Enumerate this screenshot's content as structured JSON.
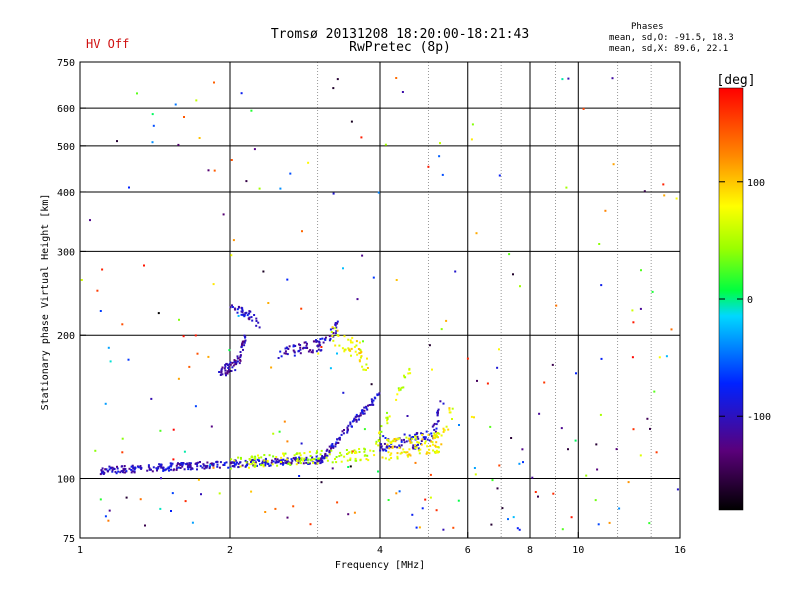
{
  "header": {
    "hv_status": "HV Off",
    "title_line1": "Tromsø 20131208 18:20:00-18:21:43",
    "title_line2": "RwPretec (8p)",
    "phases_title": "Phases",
    "phases_o": "mean, sd,O: -91.5, 18.3",
    "phases_x": "mean, sd,X:  89.6, 22.1"
  },
  "colorbar": {
    "label": "[deg]",
    "ticks": [
      {
        "value": 100,
        "label": "100"
      },
      {
        "value": 0,
        "label": "0"
      },
      {
        "value": -100,
        "label": "-100"
      }
    ],
    "range": [
      -180,
      180
    ]
  },
  "chart_data": {
    "type": "scatter",
    "title": "Tromsø 20131208 18:20:00-18:21:43",
    "subtitle": "RwPretec (8p)",
    "xlabel": "Frequency [MHz]",
    "ylabel": "Stationary phase Virtual Height [km]",
    "xscale": "log",
    "yscale": "log",
    "xlim": [
      1,
      16
    ],
    "ylim": [
      75,
      750
    ],
    "grid": true,
    "x_ticks": [
      {
        "value": 1,
        "label": "1"
      },
      {
        "value": 2,
        "label": "2"
      },
      {
        "value": 4,
        "label": "4"
      },
      {
        "value": 6,
        "label": "6"
      },
      {
        "value": 8,
        "label": "8"
      },
      {
        "value": 10,
        "label": "10"
      },
      {
        "value": 16,
        "label": "16"
      }
    ],
    "x_grid": [
      2,
      4,
      6,
      8,
      10
    ],
    "x_minor": [
      3,
      5,
      7,
      9,
      12,
      14
    ],
    "y_ticks": [
      {
        "value": 75,
        "label": "75"
      },
      {
        "value": 100,
        "label": "100"
      },
      {
        "value": 200,
        "label": "200"
      },
      {
        "value": 300,
        "label": "300"
      },
      {
        "value": 400,
        "label": "400"
      },
      {
        "value": 500,
        "label": "500"
      },
      {
        "value": 600,
        "label": "600"
      },
      {
        "value": 750,
        "label": "750"
      }
    ],
    "y_grid": [
      100,
      200,
      300,
      400,
      500,
      600
    ],
    "traces": [
      {
        "name": "E-layer O",
        "f0": 1.1,
        "f1": 4.0,
        "h0": 104,
        "h1": 111,
        "hend": 150,
        "phase": -100,
        "count": 420,
        "spread": 0.018
      },
      {
        "name": "E-layer X",
        "f0": 2.0,
        "f1": 4.6,
        "h0": 108,
        "h1": 114,
        "hend": 170,
        "phase": 60,
        "count": 160,
        "spread": 0.03
      },
      {
        "name": "Es O",
        "f0": 4.0,
        "f1": 5.4,
        "h0": 118,
        "h1": 122,
        "hend": 150,
        "phase": -95,
        "count": 90,
        "spread": 0.04
      },
      {
        "name": "Es X",
        "f0": 4.1,
        "f1": 5.6,
        "h0": 115,
        "h1": 120,
        "hend": 140,
        "phase": 80,
        "count": 110,
        "spread": 0.05
      },
      {
        "name": "F O low",
        "f0": 1.9,
        "f1": 2.15,
        "h0": 165,
        "h1": 180,
        "hend": 200,
        "phase": -110,
        "count": 70,
        "spread": 0.03
      },
      {
        "name": "F O mid",
        "f0": 2.5,
        "f1": 3.3,
        "h0": 182,
        "h1": 195,
        "hend": 210,
        "phase": -105,
        "count": 80,
        "spread": 0.03
      },
      {
        "name": "F O upper",
        "f0": 2.0,
        "f1": 2.3,
        "h0": 230,
        "h1": 215,
        "hend": 210,
        "phase": -100,
        "count": 40,
        "spread": 0.02
      },
      {
        "name": "F X",
        "f0": 3.2,
        "f1": 3.8,
        "h0": 200,
        "h1": 180,
        "hend": 170,
        "phase": 80,
        "count": 50,
        "spread": 0.05
      }
    ],
    "scatter": {
      "count": 240,
      "f_range": [
        1,
        16
      ],
      "h_range": [
        78,
        700
      ]
    }
  }
}
